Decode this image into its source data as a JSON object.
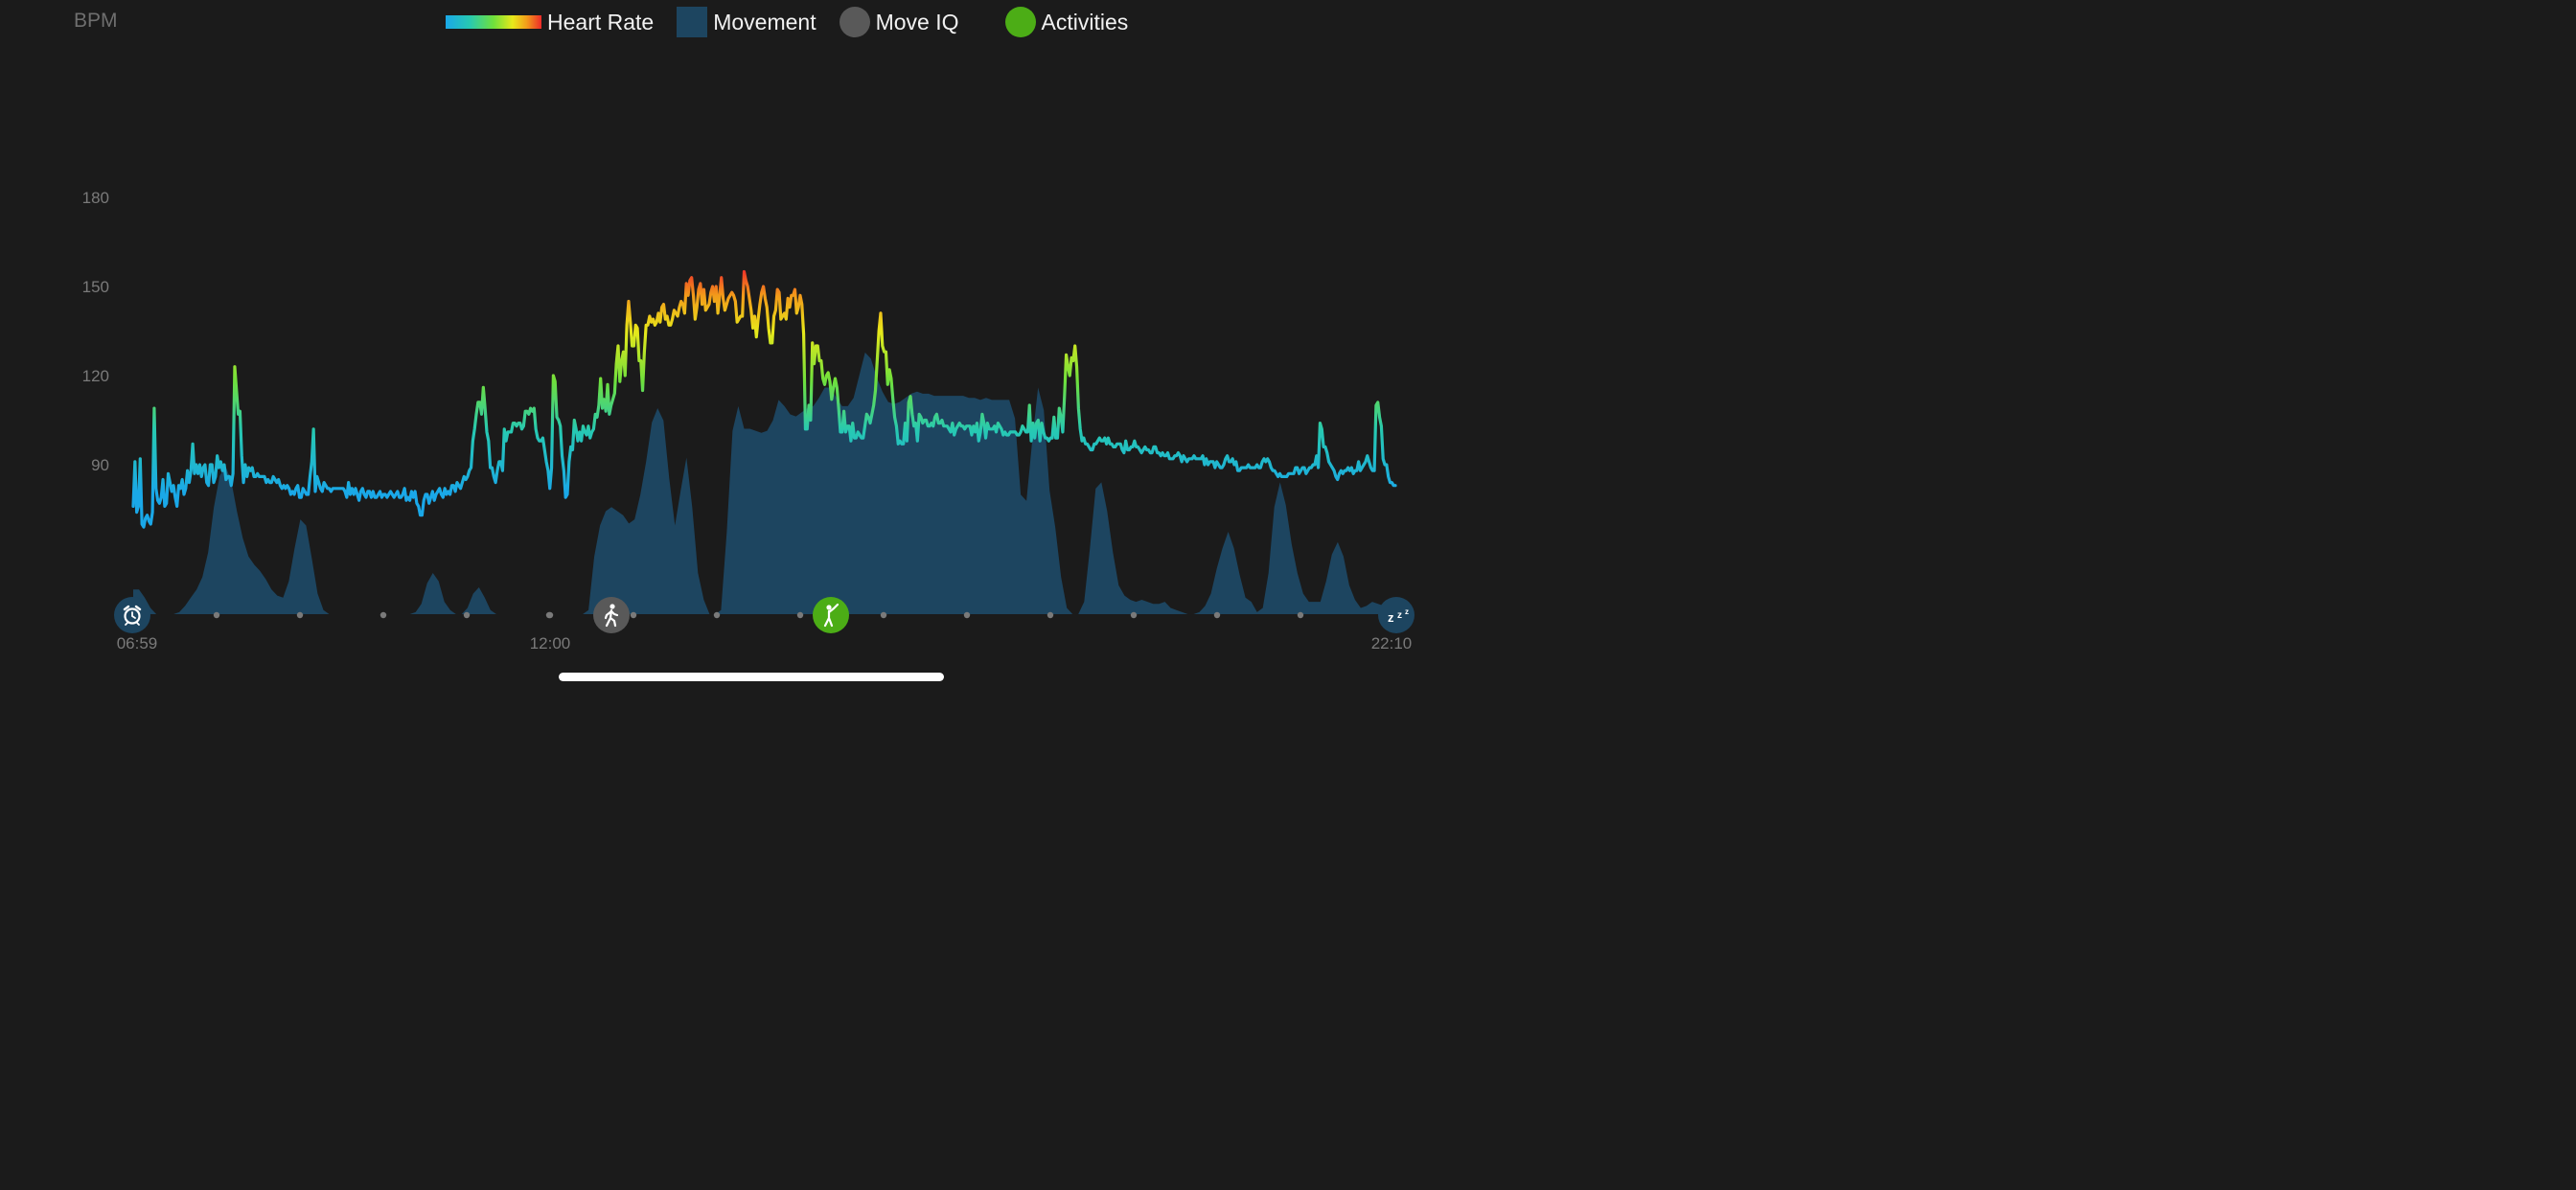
{
  "header": {
    "ylabel": "BPM"
  },
  "legend": {
    "heart_rate": "Heart Rate",
    "movement": "Movement",
    "move_iq": "Move IQ",
    "activities": "Activities"
  },
  "icons": {
    "wake": "alarm-clock-icon",
    "walk": "walking-icon",
    "activity": "golf-icon",
    "sleep": "sleep-zzz-icon"
  },
  "colors": {
    "background": "#1b1b1b",
    "movement": "#1d4560",
    "move_iq": "#595959",
    "activities": "#4cad16",
    "hr_gradient": [
      "#1aa8e8",
      "#27c9b2",
      "#6fe03c",
      "#e8e81a",
      "#f29a1a",
      "#ee2a2a"
    ]
  },
  "chart_data": {
    "type": "line",
    "title": "",
    "ylabel": "BPM",
    "yticks": [
      90,
      120,
      150,
      180
    ],
    "ylim": [
      40,
      190
    ],
    "x_tick_labels": [
      "06:59",
      "12:00",
      "22:10"
    ],
    "x_start_label": "06:59",
    "x_end_label": "22:10",
    "series": [
      {
        "name": "Heart Rate",
        "values": [
          76,
          91,
          74,
          76,
          92,
          70,
          69,
          72,
          73,
          71,
          70,
          74,
          109,
          82,
          78,
          77,
          79,
          85,
          76,
          77,
          87,
          84,
          81,
          83,
          79,
          76,
          83,
          82,
          85,
          80,
          82,
          88,
          84,
          88,
          97,
          87,
          90,
          87,
          90,
          86,
          89,
          90,
          84,
          83,
          90,
          90,
          84,
          86,
          93,
          89,
          91,
          88,
          90,
          85,
          86,
          86,
          83,
          87,
          123,
          115,
          107,
          108,
          93,
          84,
          90,
          86,
          89,
          88,
          89,
          86,
          86,
          87,
          86,
          86,
          86,
          86,
          84,
          85,
          84,
          84,
          86,
          85,
          84,
          85,
          83,
          82,
          83,
          82,
          83,
          82,
          80,
          81,
          80,
          82,
          83,
          79,
          79,
          82,
          81,
          80,
          80,
          86,
          91,
          102,
          81,
          86,
          84,
          82,
          81,
          84,
          83,
          82,
          82,
          81,
          82,
          82,
          82,
          82,
          82,
          82,
          82,
          81,
          79,
          84,
          80,
          82,
          80,
          82,
          80,
          78,
          81,
          82,
          80,
          79,
          81,
          81,
          79,
          81,
          79,
          79,
          80,
          81,
          79,
          80,
          80,
          79,
          80,
          81,
          80,
          79,
          80,
          81,
          79,
          79,
          80,
          82,
          78,
          79,
          78,
          81,
          79,
          81,
          77,
          76,
          73,
          73,
          78,
          80,
          80,
          77,
          79,
          81,
          78,
          80,
          81,
          82,
          80,
          79,
          82,
          80,
          81,
          80,
          83,
          83,
          81,
          84,
          83,
          82,
          84,
          86,
          85,
          86,
          88,
          89,
          98,
          102,
          107,
          111,
          111,
          107,
          116,
          109,
          101,
          98,
          89,
          89,
          86,
          84,
          88,
          91,
          91,
          88,
          102,
          98,
          101,
          101,
          101,
          104,
          104,
          103,
          104,
          104,
          102,
          103,
          108,
          108,
          107,
          109,
          108,
          109,
          102,
          99,
          98,
          98,
          99,
          95,
          91,
          88,
          82,
          89,
          120,
          118,
          106,
          105,
          103,
          93,
          88,
          79,
          80,
          91,
          96,
          95,
          105,
          102,
          98,
          101,
          98,
          103,
          101,
          100,
          103,
          99,
          101,
          102,
          107,
          106,
          110,
          119,
          109,
          112,
          108,
          117,
          107,
          110,
          112,
          114,
          124,
          130,
          118,
          125,
          128,
          120,
          137,
          145,
          138,
          130,
          130,
          137,
          136,
          125,
          125,
          115,
          128,
          137,
          137,
          140,
          138,
          139,
          137,
          138,
          141,
          138,
          143,
          144,
          139,
          140,
          137,
          137,
          139,
          142,
          141,
          140,
          143,
          145,
          144,
          141,
          151,
          147,
          152,
          153,
          147,
          139,
          143,
          149,
          151,
          144,
          149,
          142,
          143,
          144,
          148,
          150,
          145,
          150,
          141,
          147,
          153,
          146,
          142,
          144,
          146,
          147,
          148,
          147,
          145,
          138,
          139,
          140,
          140,
          155,
          152,
          150,
          146,
          142,
          136,
          140,
          133,
          139,
          144,
          148,
          150,
          146,
          143,
          136,
          131,
          131,
          140,
          142,
          149,
          148,
          139,
          140,
          141,
          139,
          146,
          143,
          147,
          147,
          149,
          141,
          143,
          147,
          144,
          134,
          102,
          102,
          110,
          105,
          131,
          124,
          130,
          130,
          125,
          125,
          119,
          117,
          120,
          121,
          118,
          112,
          116,
          119,
          116,
          109,
          101,
          101,
          108,
          101,
          103,
          103,
          98,
          104,
          99,
          99,
          101,
          100,
          99,
          99,
          103,
          107,
          106,
          104,
          107,
          110,
          115,
          125,
          135,
          141,
          130,
          128,
          128,
          117,
          122,
          119,
          112,
          106,
          103,
          97,
          98,
          97,
          97,
          104,
          98,
          111,
          113,
          107,
          103,
          104,
          98,
          107,
          106,
          104,
          105,
          105,
          103,
          103,
          104,
          103,
          106,
          107,
          104,
          104,
          105,
          103,
          103,
          103,
          102,
          101,
          104,
          100,
          102,
          103,
          104,
          103,
          103,
          102,
          103,
          103,
          103,
          100,
          103,
          101,
          104,
          98,
          101,
          107,
          104,
          99,
          104,
          102,
          102,
          102,
          103,
          101,
          104,
          103,
          102,
          100,
          101,
          100,
          100,
          101,
          101,
          101,
          101,
          100,
          100,
          101,
          103,
          102,
          101,
          101,
          110,
          98,
          104,
          99,
          104,
          105,
          98,
          104,
          101,
          99,
          99,
          98,
          99,
          99,
          106,
          99,
          99,
          109,
          106,
          101,
          113,
          127,
          123,
          120,
          126,
          125,
          130,
          123,
          109,
          102,
          98,
          99,
          97,
          97,
          96,
          95,
          95,
          97,
          97,
          98,
          99,
          98,
          98,
          99,
          97,
          99,
          97,
          97,
          96,
          96,
          97,
          97,
          97,
          95,
          94,
          98,
          95,
          95,
          96,
          96,
          98,
          96,
          96,
          95,
          94,
          95,
          96,
          95,
          95,
          94,
          94,
          96,
          96,
          94,
          94,
          93,
          94,
          93,
          93,
          94,
          92,
          92,
          92,
          93,
          93,
          94,
          93,
          91,
          93,
          92,
          91,
          92,
          92,
          92,
          93,
          92,
          92,
          92,
          92,
          93,
          90,
          92,
          90,
          91,
          91,
          91,
          89,
          91,
          90,
          89,
          89,
          90,
          92,
          93,
          91,
          91,
          92,
          90,
          91,
          88,
          88,
          89,
          89,
          89,
          89,
          90,
          89,
          89,
          89,
          89,
          90,
          89,
          89,
          91,
          92,
          91,
          92,
          91,
          89,
          88,
          88,
          87,
          86,
          87,
          86,
          86,
          86,
          86,
          87,
          87,
          87,
          87,
          89,
          89,
          87,
          88,
          89,
          89,
          87,
          88,
          89,
          89,
          90,
          90,
          93,
          89,
          104,
          102,
          96,
          96,
          94,
          91,
          90,
          89,
          88,
          86,
          85,
          87,
          88,
          87,
          88,
          88,
          89,
          88,
          89,
          87,
          88,
          88,
          91,
          88,
          89,
          90,
          91,
          93,
          91,
          89,
          88,
          88,
          110,
          111,
          106,
          103,
          92,
          90,
          90,
          86,
          84,
          84,
          83,
          83
        ]
      },
      {
        "name": "Movement",
        "values": [
          0.12,
          0.12,
          0.08,
          0.03,
          0,
          0,
          0,
          0,
          0.01,
          0.04,
          0.08,
          0.12,
          0.18,
          0.3,
          0.52,
          0.67,
          0.72,
          0.65,
          0.5,
          0.37,
          0.28,
          0.24,
          0.21,
          0.17,
          0.12,
          0.09,
          0.08,
          0.16,
          0.32,
          0.46,
          0.43,
          0.27,
          0.1,
          0.02,
          0,
          0,
          0,
          0,
          0,
          0,
          0,
          0,
          0,
          0,
          0,
          0,
          0,
          0,
          0,
          0.01,
          0.05,
          0.15,
          0.2,
          0.16,
          0.06,
          0.02,
          0,
          0,
          0.03,
          0.1,
          0.13,
          0.08,
          0.02,
          0,
          0,
          0,
          0,
          0,
          0,
          0,
          0,
          0,
          0,
          0,
          0,
          0,
          0,
          0,
          0,
          0.02,
          0.28,
          0.43,
          0.5,
          0.52,
          0.5,
          0.48,
          0.44,
          0.46,
          0.58,
          0.74,
          0.93,
          1,
          0.94,
          0.66,
          0.43,
          0.6,
          0.76,
          0.52,
          0.2,
          0.07,
          0,
          0,
          0.02,
          0.4,
          0.89,
          1.01,
          0.9,
          0.9,
          0.89,
          0.88,
          0.89,
          0.94,
          1.04,
          1.01,
          0.97,
          0.96,
          0.98,
          1,
          1.01,
          1.05,
          1.1,
          1.1,
          1.05,
          1.01,
          1.01,
          1.05,
          1.16,
          1.27,
          1.24,
          1.15,
          1.08,
          1.03,
          1.02,
          1.03,
          1.05,
          1.07,
          1.08,
          1.07,
          1.07,
          1.06,
          1.06,
          1.06,
          1.06,
          1.06,
          1.06,
          1.05,
          1.05,
          1.04,
          1.05,
          1.04,
          1.04,
          1.04,
          1.04,
          0.95,
          0.58,
          0.55,
          0.84,
          1.1,
          0.99,
          0.6,
          0.42,
          0.18,
          0.03,
          0,
          0,
          0.06,
          0.32,
          0.61,
          0.64,
          0.5,
          0.3,
          0.14,
          0.09,
          0.07,
          0.06,
          0.07,
          0.06,
          0.05,
          0.05,
          0.06,
          0.03,
          0.02,
          0.01,
          0,
          0,
          0.01,
          0.04,
          0.1,
          0.22,
          0.32,
          0.4,
          0.32,
          0.19,
          0.08,
          0.06,
          0.01,
          0.03,
          0.2,
          0.52,
          0.64,
          0.53,
          0.34,
          0.2,
          0.1,
          0.06,
          0.06,
          0.06,
          0.16,
          0.29,
          0.35,
          0.28,
          0.14,
          0.07,
          0.03,
          0.04,
          0.06,
          0.05,
          0.04,
          0.05,
          0.04
        ]
      }
    ],
    "markers": [
      {
        "type": "Move IQ",
        "label": "Walking"
      },
      {
        "type": "Activities",
        "label": "Golf"
      }
    ]
  }
}
